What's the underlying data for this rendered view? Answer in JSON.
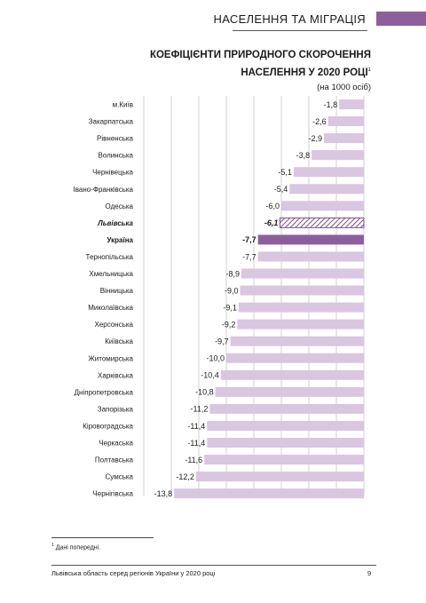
{
  "header": {
    "section_title": "НАСЕЛЕННЯ ТА МІГРАЦІЯ"
  },
  "colors": {
    "bar": "#d9c6e1",
    "highlight": "#8e5e9c",
    "hatch": "#7a4d8c",
    "grid": "#d2d2d2"
  },
  "chart_data": {
    "type": "bar",
    "orientation": "horizontal",
    "title_line1": "КОЕФІЦІЄНТИ ПРИРОДНОГО СКОРОЧЕННЯ",
    "title_line2": "НАСЕЛЕННЯ У 2020 РОЦІ",
    "title_footnote_mark": "1",
    "subtitle": "(на 1000 осіб)",
    "categories": [
      "м.Київ",
      "Закарпатська",
      "Рівненська",
      "Волинська",
      "Чернівецька",
      "Івано-Франківська",
      "Одеська",
      "Львівська",
      "Україна",
      "Тернопільська",
      "Хмельницька",
      "Вінницька",
      "Миколаївська",
      "Херсонська",
      "Київська",
      "Житомирська",
      "Харківська",
      "Дніпропетровська",
      "Запорізька",
      "Кіровоградська",
      "Черкаська",
      "Полтавська",
      "Сумська",
      "Чернігівська"
    ],
    "values": [
      -1.8,
      -2.6,
      -2.9,
      -3.8,
      -5.1,
      -5.4,
      -6.0,
      -6.1,
      -7.7,
      -7.7,
      -8.9,
      -9.0,
      -9.1,
      -9.2,
      -9.7,
      -10.0,
      -10.4,
      -10.8,
      -11.2,
      -11.4,
      -11.4,
      -11.6,
      -12.2,
      -13.8
    ],
    "value_labels": [
      "-1,8",
      "-2,6",
      "-2,9",
      "-3,8",
      "-5,1",
      "-5,4",
      "-6,0",
      "-6,1",
      "-7,7",
      "-7,7",
      "-8,9",
      "-9,0",
      "-9,1",
      "-9,2",
      "-9,7",
      "-10,0",
      "-10,4",
      "-10,8",
      "-11,2",
      "-11,4",
      "-11,4",
      "-11,6",
      "-12,2",
      "-13,8"
    ],
    "highlight_hatched": "Львівська",
    "highlight_solid": "Україна",
    "xlim": [
      -16,
      0
    ],
    "gridlines": [
      -16,
      -14,
      -12,
      -10,
      -8,
      -6,
      -4,
      -2,
      0
    ],
    "grid": true,
    "legend": "none"
  },
  "footnote": {
    "mark": "1",
    "text": " Дані попередні."
  },
  "footer": {
    "text": "Львівська область серед регіонів України у 2020 році",
    "page_number": "9"
  }
}
